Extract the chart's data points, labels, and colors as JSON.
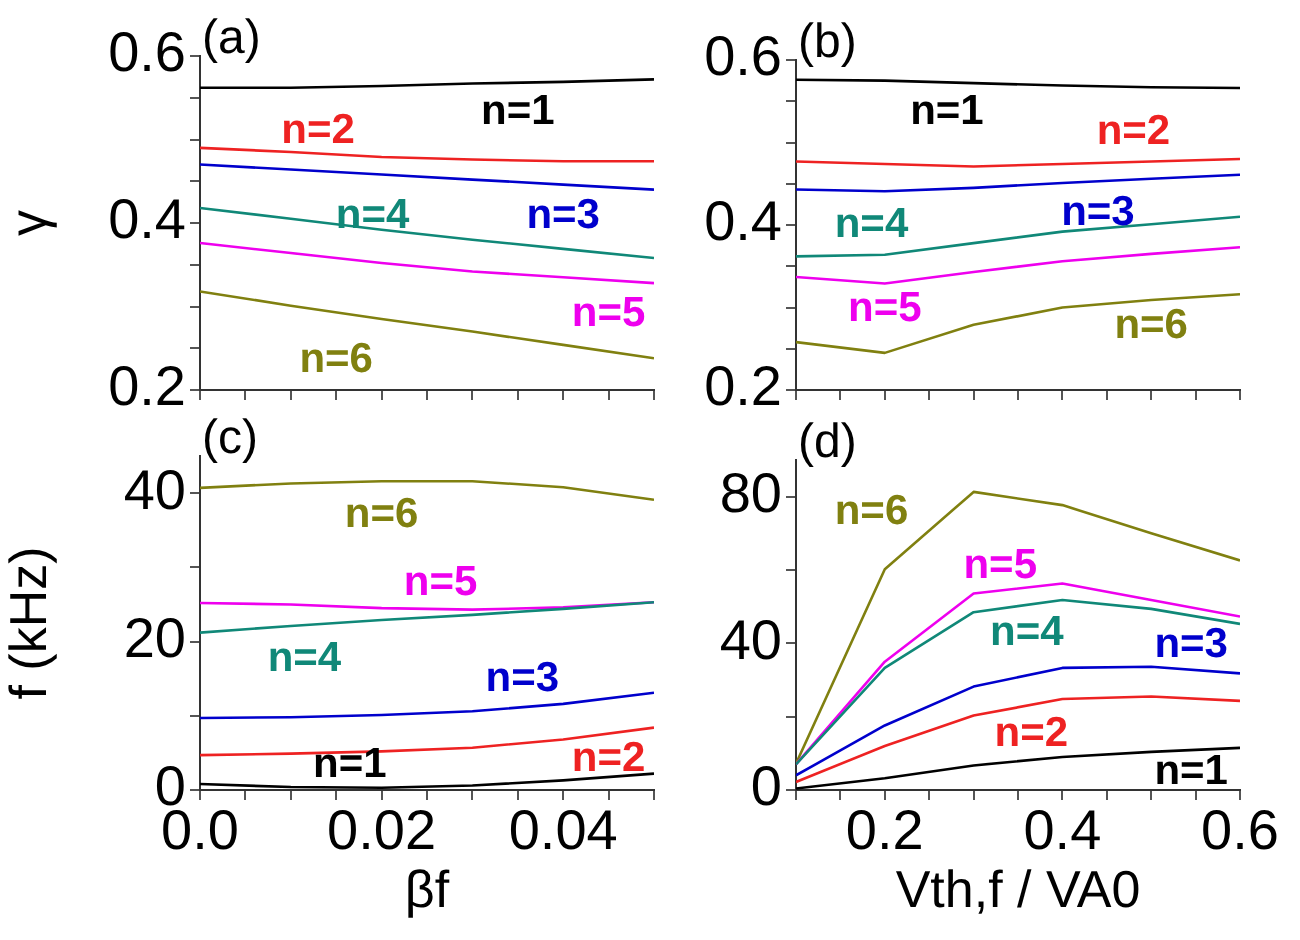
{
  "chart_data": [
    {
      "type": "line",
      "title": "(a)",
      "ylabel": "γ",
      "x": [
        0,
        0.01,
        0.02,
        0.03,
        0.04,
        0.05
      ],
      "xlim": [
        0,
        0.05
      ],
      "xticks": [
        {
          "value": 0,
          "label": null
        },
        {
          "value": 0.005,
          "label": null
        },
        {
          "value": 0.01,
          "label": null
        },
        {
          "value": 0.015,
          "label": null
        },
        {
          "value": 0.02,
          "label": null
        },
        {
          "value": 0.025,
          "label": null
        },
        {
          "value": 0.03,
          "label": null
        },
        {
          "value": 0.035,
          "label": null
        },
        {
          "value": 0.04,
          "label": null
        },
        {
          "value": 0.045,
          "label": null
        },
        {
          "value": 0.05,
          "label": null
        }
      ],
      "ylim": [
        0.2,
        0.6
      ],
      "yticks": [
        0.2,
        {
          "value": 0.25,
          "label": null
        },
        {
          "value": 0.3,
          "label": null
        },
        {
          "value": 0.35,
          "label": null
        },
        0.4,
        {
          "value": 0.45,
          "label": null
        },
        {
          "value": 0.5,
          "label": null
        },
        {
          "value": 0.55,
          "label": null
        },
        0.6
      ],
      "tick_labels": "y",
      "grid": false,
      "legend": false,
      "series": [
        {
          "name": "n=1",
          "color": "#000000",
          "values": [
            0.562,
            0.562,
            0.564,
            0.567,
            0.569,
            0.572
          ]
        },
        {
          "name": "n=2",
          "color": "#ee2222",
          "values": [
            0.49,
            0.485,
            0.479,
            0.476,
            0.474,
            0.474
          ]
        },
        {
          "name": "n=3",
          "color": "#0000cc",
          "values": [
            0.47,
            0.464,
            0.458,
            0.452,
            0.446,
            0.44
          ]
        },
        {
          "name": "n=4",
          "color": "#108878",
          "values": [
            0.418,
            0.405,
            0.392,
            0.38,
            0.369,
            0.358
          ]
        },
        {
          "name": "n=5",
          "color": "#ee00ee",
          "values": [
            0.376,
            0.364,
            0.352,
            0.342,
            0.335,
            0.328
          ]
        },
        {
          "name": "n=6",
          "color": "#808010",
          "values": [
            0.318,
            0.301,
            0.285,
            0.27,
            0.254,
            0.238
          ]
        }
      ]
    },
    {
      "type": "line",
      "title": "(b)",
      "x": [
        0.1,
        0.2,
        0.3,
        0.4,
        0.5,
        0.6
      ],
      "xlim": [
        0.1,
        0.6
      ],
      "xticks": [
        {
          "value": 0.1,
          "label": null
        },
        {
          "value": 0.15,
          "label": null
        },
        {
          "value": 0.2,
          "label": null
        },
        {
          "value": 0.25,
          "label": null
        },
        {
          "value": 0.3,
          "label": null
        },
        {
          "value": 0.35,
          "label": null
        },
        {
          "value": 0.4,
          "label": null
        },
        {
          "value": 0.45,
          "label": null
        },
        {
          "value": 0.5,
          "label": null
        },
        {
          "value": 0.55,
          "label": null
        },
        {
          "value": 0.6,
          "label": null
        }
      ],
      "ylim": [
        0.2,
        0.6
      ],
      "yticks": [
        0.2,
        {
          "value": 0.25,
          "label": null
        },
        {
          "value": 0.3,
          "label": null
        },
        {
          "value": 0.35,
          "label": null
        },
        0.4,
        {
          "value": 0.45,
          "label": null
        },
        {
          "value": 0.5,
          "label": null
        },
        {
          "value": 0.55,
          "label": null
        },
        0.6
      ],
      "tick_labels": "y",
      "grid": false,
      "legend": false,
      "series": [
        {
          "name": "n=1",
          "color": "#000000",
          "values": [
            0.576,
            0.575,
            0.572,
            0.569,
            0.567,
            0.566
          ]
        },
        {
          "name": "n=2",
          "color": "#ee2222",
          "values": [
            0.477,
            0.474,
            0.471,
            0.474,
            0.477,
            0.48
          ]
        },
        {
          "name": "n=3",
          "color": "#0000cc",
          "values": [
            0.443,
            0.441,
            0.445,
            0.451,
            0.456,
            0.461
          ]
        },
        {
          "name": "n=4",
          "color": "#108878",
          "values": [
            0.362,
            0.364,
            0.378,
            0.392,
            0.401,
            0.41
          ]
        },
        {
          "name": "n=5",
          "color": "#ee00ee",
          "values": [
            0.337,
            0.329,
            0.343,
            0.356,
            0.365,
            0.373
          ]
        },
        {
          "name": "n=6",
          "color": "#808010",
          "values": [
            0.258,
            0.245,
            0.279,
            0.3,
            0.309,
            0.316
          ]
        }
      ]
    },
    {
      "type": "line",
      "title": "(c)",
      "ylabel": "f (kHz)",
      "xlabel": "βf",
      "x": [
        0,
        0.01,
        0.02,
        0.03,
        0.04,
        0.05
      ],
      "xlim": [
        0,
        0.05
      ],
      "xticks": [
        {
          "value": 0,
          "label": "0.0"
        },
        {
          "value": 0.005,
          "label": null
        },
        {
          "value": 0.01,
          "label": null
        },
        {
          "value": 0.015,
          "label": null
        },
        0.02,
        {
          "value": 0.025,
          "label": null
        },
        {
          "value": 0.03,
          "label": null
        },
        {
          "value": 0.035,
          "label": null
        },
        0.04,
        {
          "value": 0.045,
          "label": null
        },
        {
          "value": 0.05,
          "label": null
        }
      ],
      "ylim": [
        0,
        45
      ],
      "yticks": [
        0,
        {
          "value": 10,
          "label": null
        },
        20,
        {
          "value": 30,
          "label": null
        },
        40
      ],
      "grid": false,
      "legend": false,
      "series": [
        {
          "name": "n=1",
          "color": "#000000",
          "values": [
            0.8,
            0.4,
            0.3,
            0.6,
            1.3,
            2.2
          ]
        },
        {
          "name": "n=2",
          "color": "#ee2222",
          "values": [
            4.7,
            4.9,
            5.2,
            5.7,
            6.8,
            8.4
          ]
        },
        {
          "name": "n=3",
          "color": "#0000cc",
          "values": [
            9.7,
            9.8,
            10.1,
            10.6,
            11.6,
            13.1
          ]
        },
        {
          "name": "n=4",
          "color": "#108878",
          "values": [
            21.2,
            22.1,
            22.9,
            23.6,
            24.4,
            25.3
          ]
        },
        {
          "name": "n=5",
          "color": "#ee00ee",
          "values": [
            25.2,
            25,
            24.5,
            24.3,
            24.6,
            25.3
          ]
        },
        {
          "name": "n=6",
          "color": "#808010",
          "values": [
            40.7,
            41.3,
            41.6,
            41.6,
            40.8,
            39.1
          ]
        }
      ]
    },
    {
      "type": "line",
      "title": "(d)",
      "xlabel": "Vth,f / VA0",
      "x": [
        0.1,
        0.2,
        0.3,
        0.4,
        0.5,
        0.6
      ],
      "xlim": [
        0.1,
        0.6
      ],
      "xticks": [
        {
          "value": 0.1,
          "label": null
        },
        {
          "value": 0.15,
          "label": null
        },
        0.2,
        {
          "value": 0.25,
          "label": null
        },
        {
          "value": 0.3,
          "label": null
        },
        {
          "value": 0.35,
          "label": null
        },
        0.4,
        {
          "value": 0.45,
          "label": null
        },
        {
          "value": 0.5,
          "label": null
        },
        {
          "value": 0.55,
          "label": null
        },
        0.6
      ],
      "ylim": [
        0,
        90
      ],
      "yticks": [
        0,
        {
          "value": 20,
          "label": null
        },
        40,
        {
          "value": 60,
          "label": null
        },
        80
      ],
      "grid": false,
      "legend": false,
      "series": [
        {
          "name": "n=1",
          "color": "#000000",
          "values": [
            0.4,
            3.2,
            6.7,
            9,
            10.4,
            11.5
          ]
        },
        {
          "name": "n=2",
          "color": "#ee2222",
          "values": [
            2.2,
            12,
            20.3,
            24.8,
            25.5,
            24.3
          ]
        },
        {
          "name": "n=3",
          "color": "#0000cc",
          "values": [
            4,
            17.6,
            28.2,
            33.3,
            33.6,
            31.8
          ]
        },
        {
          "name": "n=4",
          "color": "#108878",
          "values": [
            7,
            33.3,
            48.5,
            51.8,
            49.4,
            45.3
          ]
        },
        {
          "name": "n=5",
          "color": "#ee00ee",
          "values": [
            7,
            35,
            53.6,
            56.3,
            51.8,
            47.3
          ]
        },
        {
          "name": "n=6",
          "color": "#808010",
          "values": [
            7.2,
            60.2,
            81.3,
            77.7,
            70,
            62.6
          ]
        }
      ]
    }
  ]
}
